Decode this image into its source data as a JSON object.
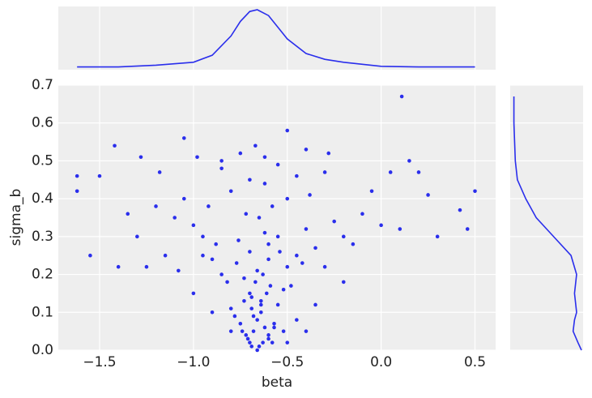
{
  "chart_data": {
    "type": "scatter",
    "color": "#2a2eec",
    "xlabel": "beta",
    "ylabel": "sigma_b",
    "xlim": [
      -1.72,
      0.61
    ],
    "ylim": [
      0,
      0.7
    ],
    "xticks": [
      {
        "value": -1.5,
        "label": "−1.5"
      },
      {
        "value": -1.0,
        "label": "−1.0"
      },
      {
        "value": -0.5,
        "label": "−0.5"
      },
      {
        "value": 0.0,
        "label": "0.0"
      },
      0.5
    ],
    "yticks": [
      {
        "value": 0.0,
        "label": "0.0"
      },
      0.1,
      0.2,
      0.3,
      0.4,
      0.5,
      0.6,
      0.7
    ],
    "grid": true,
    "x": [
      -0.65,
      -0.7,
      -0.6,
      -0.68,
      -0.72,
      -0.62,
      -0.66,
      -0.58,
      -0.75,
      -0.64,
      -0.55,
      -0.78,
      -0.69,
      -0.61,
      -0.57,
      -0.73,
      -0.67,
      -0.63,
      -0.52,
      -0.8,
      -0.85,
      -0.5,
      -0.45,
      -0.9,
      -0.7,
      -0.6,
      -0.55,
      -0.82,
      -0.48,
      -0.76,
      -0.95,
      -0.4,
      -0.35,
      -1.0,
      -0.65,
      -0.72,
      -0.58,
      -0.88,
      -0.42,
      -0.3,
      -1.1,
      -0.25,
      -0.2,
      -1.05,
      -0.5,
      -0.8,
      -0.62,
      -0.92,
      -0.38,
      -0.15,
      -1.2,
      -0.1,
      0.0,
      -1.3,
      -0.45,
      -0.85,
      -0.7,
      -1.15,
      -0.3,
      0.1,
      -1.25,
      -1.35,
      -1.42,
      -1.5,
      -1.62,
      -1.62,
      -1.55,
      -1.4,
      -1.28,
      -1.18,
      0.11,
      0.2,
      0.3,
      0.42,
      0.46,
      0.5,
      0.25,
      0.15,
      0.05,
      -0.05,
      -0.67,
      -0.5,
      -0.62,
      -1.05,
      -0.98,
      -0.85,
      -0.75,
      -0.4,
      -0.55,
      -0.28,
      -0.66,
      -0.69,
      -0.63,
      -0.71,
      -0.6,
      -0.74,
      -0.57,
      -0.68,
      -0.64,
      -0.7,
      -1.0,
      -0.9,
      -0.8,
      -0.45,
      -0.35,
      -0.2,
      -1.08,
      -0.95,
      -0.5,
      -0.4,
      -0.6,
      -0.66,
      -0.73,
      -0.54,
      -0.77,
      -0.59,
      -0.64,
      -0.69,
      -0.52,
      -0.62
    ],
    "y": [
      0.01,
      0.02,
      0.03,
      0.05,
      0.04,
      0.06,
      0.08,
      0.02,
      0.07,
      0.1,
      0.12,
      0.09,
      0.14,
      0.15,
      0.07,
      0.13,
      0.18,
      0.2,
      0.16,
      0.11,
      0.2,
      0.22,
      0.25,
      0.24,
      0.26,
      0.28,
      0.3,
      0.18,
      0.17,
      0.29,
      0.3,
      0.32,
      0.27,
      0.33,
      0.35,
      0.36,
      0.38,
      0.28,
      0.23,
      0.22,
      0.35,
      0.34,
      0.3,
      0.4,
      0.4,
      0.42,
      0.44,
      0.38,
      0.41,
      0.28,
      0.38,
      0.36,
      0.33,
      0.3,
      0.46,
      0.48,
      0.45,
      0.25,
      0.47,
      0.32,
      0.22,
      0.36,
      0.54,
      0.46,
      0.46,
      0.42,
      0.25,
      0.22,
      0.51,
      0.47,
      0.67,
      0.47,
      0.3,
      0.37,
      0.32,
      0.42,
      0.41,
      0.5,
      0.47,
      0.42,
      0.54,
      0.58,
      0.51,
      0.56,
      0.51,
      0.5,
      0.52,
      0.53,
      0.49,
      0.52,
      0.0,
      0.01,
      0.02,
      0.03,
      0.04,
      0.05,
      0.06,
      0.09,
      0.12,
      0.15,
      0.15,
      0.1,
      0.05,
      0.08,
      0.12,
      0.18,
      0.21,
      0.25,
      0.02,
      0.05,
      0.24,
      0.21,
      0.19,
      0.26,
      0.23,
      0.17,
      0.13,
      0.11,
      0.05,
      0.31
    ],
    "marginal_x": {
      "x": [
        -1.62,
        -1.4,
        -1.2,
        -1.0,
        -0.9,
        -0.8,
        -0.75,
        -0.7,
        -0.66,
        -0.6,
        -0.55,
        -0.5,
        -0.4,
        -0.3,
        -0.2,
        0,
        0.2,
        0.5
      ],
      "density": [
        0.02,
        0.02,
        0.05,
        0.1,
        0.22,
        0.55,
        0.8,
        0.97,
        1.0,
        0.9,
        0.7,
        0.5,
        0.25,
        0.15,
        0.1,
        0.03,
        0.02,
        0.02
      ]
    },
    "marginal_y": {
      "y": [
        0,
        0.02,
        0.05,
        0.08,
        0.1,
        0.15,
        0.2,
        0.25,
        0.3,
        0.35,
        0.4,
        0.45,
        0.5,
        0.6,
        0.67
      ],
      "density": [
        1.0,
        0.95,
        0.88,
        0.9,
        0.93,
        0.9,
        0.93,
        0.85,
        0.6,
        0.35,
        0.2,
        0.08,
        0.05,
        0.03,
        0.03
      ]
    }
  }
}
